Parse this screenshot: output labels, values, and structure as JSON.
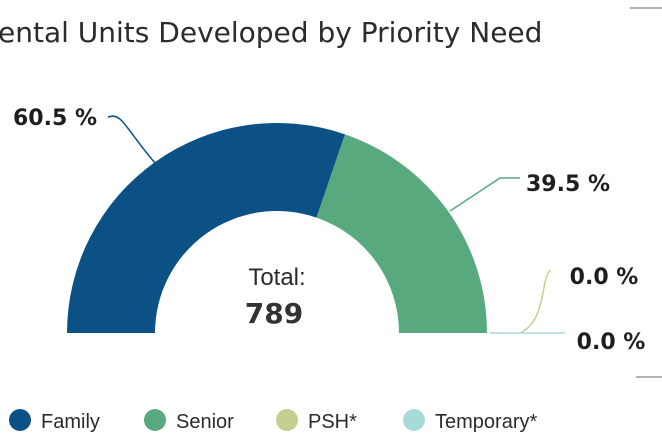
{
  "chart_data": {
    "type": "pie",
    "title": "ental Units Developed by Priority Need",
    "center_label": "Total:",
    "center_value": 789,
    "categories": [
      "Family",
      "Senior",
      "PSH*",
      "Temporary*"
    ],
    "values": [
      60.5,
      39.5,
      0.0,
      0.0
    ],
    "value_labels": [
      "60.5 %",
      "39.5 %",
      "0.0 %",
      "0.0 %"
    ],
    "colors": [
      "#0b5185",
      "#58aa7e",
      "#c5cf8f",
      "#a6dbd9"
    ],
    "legend": "bottom"
  }
}
